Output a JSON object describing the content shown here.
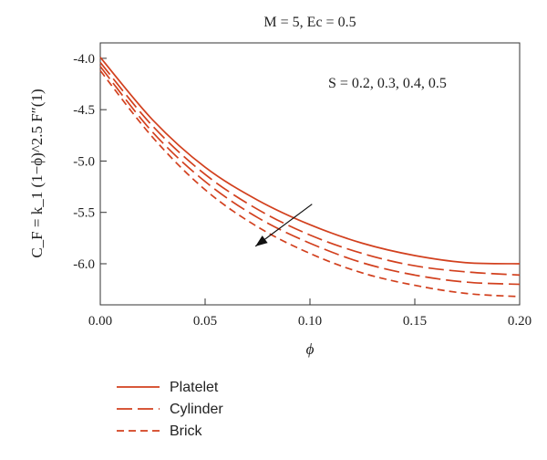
{
  "chart_data": {
    "type": "line",
    "title": "M = 5, Ec = 0.5",
    "xlabel": "ϕ",
    "ylabel": "C_F = k_1 (1−ϕ)^2.5 F″(1)",
    "xlim": [
      0.0,
      0.2
    ],
    "ylim": [
      -6.4,
      -3.85
    ],
    "xticks": [
      "0.00",
      "0.05",
      "0.10",
      "0.15",
      "0.20"
    ],
    "yticks": [
      "-4.0",
      "-4.5",
      "-5.0",
      "-5.5",
      "-6.0"
    ],
    "annotation": "S = 0.2, 0.3, 0.4, 0.5",
    "arrow": {
      "from": [
        0.101,
        -5.42
      ],
      "to": [
        0.074,
        -5.83
      ]
    },
    "grid": false,
    "legend_position": "bottom-left",
    "color": "#d2401e",
    "series": [
      {
        "name": "Platelet",
        "dash": "solid",
        "x": [
          0.0,
          0.025,
          0.05,
          0.075,
          0.1,
          0.125,
          0.15,
          0.175,
          0.2
        ],
        "values": [
          -3.99,
          -4.6,
          -5.06,
          -5.38,
          -5.62,
          -5.8,
          -5.92,
          -5.99,
          -6.0
        ]
      },
      {
        "name": "Cylinder",
        "dash": "long",
        "x": [
          0.0,
          0.025,
          0.05,
          0.075,
          0.1,
          0.125,
          0.15,
          0.175,
          0.2
        ],
        "values": [
          -4.04,
          -4.66,
          -5.13,
          -5.47,
          -5.72,
          -5.9,
          -6.02,
          -6.08,
          -6.11
        ]
      },
      {
        "name": "",
        "dash": "long",
        "x": [
          0.0,
          0.025,
          0.05,
          0.075,
          0.1,
          0.125,
          0.15,
          0.175,
          0.2
        ],
        "values": [
          -4.08,
          -4.72,
          -5.2,
          -5.55,
          -5.8,
          -5.99,
          -6.11,
          -6.18,
          -6.2
        ]
      },
      {
        "name": "Brick",
        "dash": "short",
        "x": [
          0.0,
          0.025,
          0.05,
          0.075,
          0.1,
          0.125,
          0.15,
          0.175,
          0.2
        ],
        "values": [
          -4.12,
          -4.77,
          -5.28,
          -5.64,
          -5.9,
          -6.09,
          -6.21,
          -6.29,
          -6.32
        ]
      }
    ]
  }
}
